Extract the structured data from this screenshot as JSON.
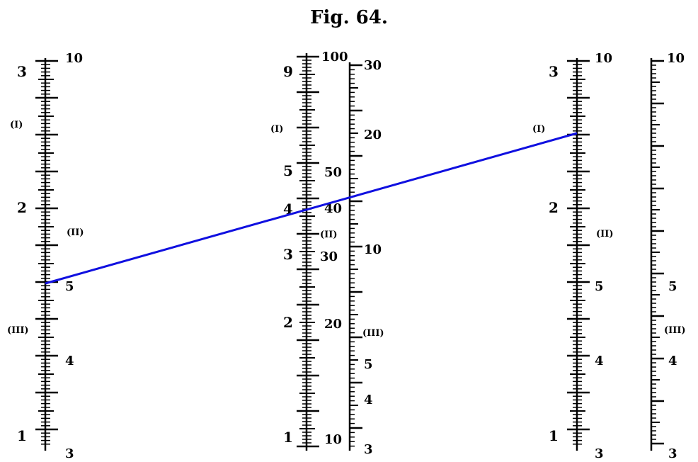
{
  "figure": {
    "title": "Fig. 64."
  },
  "line_color": "#1010e0",
  "scales": [
    {
      "id": "A",
      "left_labels": [
        "3",
        "2",
        "1"
      ],
      "right_labels": [
        "10",
        "5",
        "4",
        "3"
      ],
      "tags": [
        "(I)",
        "(II)",
        "(III)"
      ]
    },
    {
      "id": "B",
      "left_labels": [
        "9",
        "5",
        "4",
        "3",
        "2",
        "1"
      ],
      "right_labels": [
        "100",
        "50",
        "40",
        "30",
        "20",
        "10"
      ],
      "tags": [
        "(I)",
        "(II)"
      ]
    },
    {
      "id": "C",
      "right_labels": [
        "30",
        "20",
        "10",
        "5",
        "4",
        "3"
      ],
      "tags": [
        "(III)"
      ]
    },
    {
      "id": "D",
      "left_labels": [
        "3",
        "2",
        "1"
      ],
      "right_labels": [
        "10",
        "5",
        "4",
        "3"
      ],
      "tags": [
        "(I)",
        "(II)"
      ]
    },
    {
      "id": "E",
      "right_labels": [
        "10",
        "5",
        "4",
        "3"
      ],
      "tags": [
        "(III)"
      ]
    }
  ]
}
